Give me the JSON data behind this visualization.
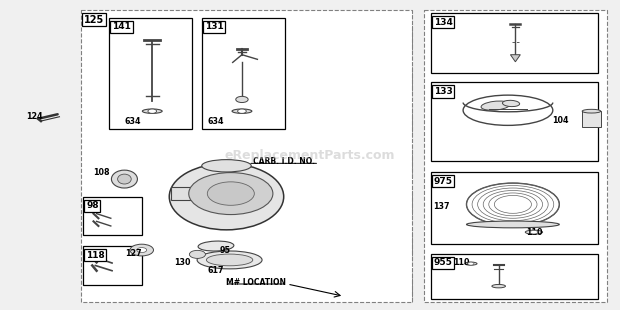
{
  "bg_color": "#f0f0f0",
  "outer_bg": "#ffffff",
  "watermark": "eReplacementParts.com",
  "carb_id_text": "CARB. I.D. NO.",
  "m_location_text": "M# LOCATION"
}
